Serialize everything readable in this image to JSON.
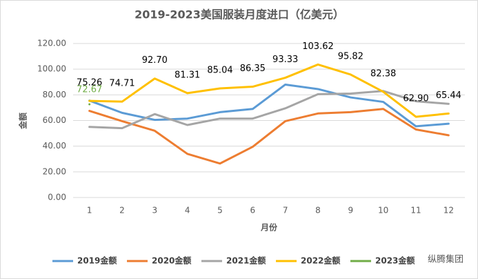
{
  "chart_data": {
    "type": "line",
    "title": "2019-2023美国服装月度进口（亿美元）",
    "x_label": "月份",
    "y_label": "金额",
    "categories": [
      "1",
      "2",
      "3",
      "4",
      "5",
      "6",
      "7",
      "8",
      "9",
      "10",
      "11",
      "12"
    ],
    "ylim": [
      0,
      120
    ],
    "yticks": [
      {
        "value": 0,
        "label": "0.00"
      },
      {
        "value": 20,
        "label": "20.00"
      },
      {
        "value": 40,
        "label": "40.00"
      },
      {
        "value": 60,
        "label": "60.00"
      },
      {
        "value": 80,
        "label": "80.00"
      },
      {
        "value": 100,
        "label": "100.00"
      },
      {
        "value": 120,
        "label": "120.00"
      }
    ],
    "grid": true,
    "legend": "bottom",
    "series": [
      {
        "name": "2019金额",
        "color": "#5b9bd5",
        "values": [
          75.5,
          66,
          60.5,
          61.5,
          66.5,
          69,
          88,
          84.5,
          78,
          74.5,
          55.5,
          57.5
        ]
      },
      {
        "name": "2020金额",
        "color": "#ed7d31",
        "values": [
          67.5,
          59.5,
          52,
          34,
          26.5,
          39.5,
          59.5,
          65.5,
          66.5,
          69,
          53,
          48.5
        ]
      },
      {
        "name": "2021金额",
        "color": "#a5a5a5",
        "values": [
          55,
          54,
          65,
          56.5,
          61.5,
          61.5,
          69.5,
          80.5,
          81,
          83,
          75,
          73
        ]
      },
      {
        "name": "2022金额",
        "color": "#ffc000",
        "values": [
          75.26,
          74.71,
          92.7,
          81.31,
          85.04,
          86.35,
          93.33,
          103.62,
          95.82,
          82.38,
          62.9,
          65.44
        ],
        "value_labels": [
          "75.26",
          "74.71",
          "92.70",
          "81.31",
          "85.04",
          "86.35",
          "93.33",
          "103.62",
          "95.82",
          "82.38",
          "62.90",
          "65.44"
        ]
      },
      {
        "name": "2023金额",
        "color": "#70ad47",
        "values": [
          72.67,
          null,
          null,
          null,
          null,
          null,
          null,
          null,
          null,
          null,
          null,
          null
        ]
      }
    ],
    "watermark": "纵腾集团"
  }
}
